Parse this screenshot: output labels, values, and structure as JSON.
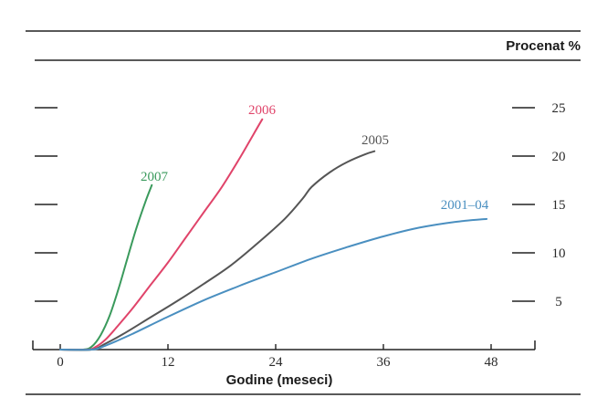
{
  "chart_data": {
    "type": "line",
    "ylabel": "Procenat %",
    "xlabel": "Godine (meseci)",
    "xlim": [
      0,
      52
    ],
    "ylim": [
      0,
      27
    ],
    "x_ticks": [
      0,
      12,
      24,
      36,
      48
    ],
    "y_ticks": [
      5,
      10,
      15,
      20,
      25
    ],
    "grid": false,
    "series": [
      {
        "name": "2007",
        "color": "#3a9a5c",
        "x": [
          0,
          2.5,
          3.5,
          4.5,
          5.5,
          6.5,
          7.5,
          8.5,
          9.5,
          10.2
        ],
        "y": [
          0,
          0,
          0.3,
          1.5,
          3.5,
          6.3,
          9.5,
          12.6,
          15.3,
          17.0
        ]
      },
      {
        "name": "2006",
        "color": "#e0446a",
        "x": [
          0,
          3,
          4,
          5,
          6,
          8,
          10,
          12,
          14,
          16,
          18,
          20,
          21.5,
          22.5
        ],
        "y": [
          0,
          0,
          0.3,
          1.0,
          2.0,
          4.2,
          6.6,
          9.0,
          11.6,
          14.2,
          16.8,
          19.8,
          22.2,
          23.8
        ]
      },
      {
        "name": "2005",
        "color": "#555555",
        "x": [
          0,
          3.5,
          5,
          7,
          10,
          13,
          16,
          19,
          22,
          25,
          27,
          28,
          30,
          32,
          34,
          35
        ],
        "y": [
          0,
          0,
          0.6,
          1.6,
          3.3,
          5.0,
          6.8,
          8.7,
          11.0,
          13.5,
          15.6,
          16.8,
          18.3,
          19.4,
          20.2,
          20.5
        ]
      },
      {
        "name": "2001–04",
        "color": "#4a8fc0",
        "x": [
          0,
          3.5,
          5,
          8,
          12,
          16,
          20,
          24,
          28,
          32,
          36,
          40,
          44,
          47.5
        ],
        "y": [
          0,
          0,
          0.4,
          1.6,
          3.4,
          5.1,
          6.6,
          8.0,
          9.4,
          10.6,
          11.7,
          12.6,
          13.2,
          13.5
        ]
      }
    ]
  }
}
